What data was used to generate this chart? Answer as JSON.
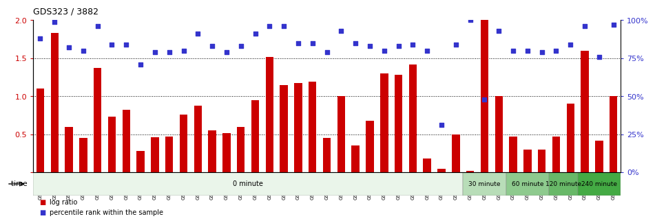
{
  "title": "GDS323 / 3882",
  "categories": [
    "GSM5811",
    "GSM5812",
    "GSM5813",
    "GSM5814",
    "GSM5815",
    "GSM5816",
    "GSM5817",
    "GSM5818",
    "GSM5819",
    "GSM5820",
    "GSM5821",
    "GSM5822",
    "GSM5823",
    "GSM5824",
    "GSM5825",
    "GSM5826",
    "GSM5827",
    "GSM5828",
    "GSM5829",
    "GSM5830",
    "GSM5831",
    "GSM5832",
    "GSM5833",
    "GSM5834",
    "GSM5835",
    "GSM5836",
    "GSM5837",
    "GSM5838",
    "GSM5839",
    "GSM5840",
    "GSM5841",
    "GSM5842",
    "GSM5843",
    "GSM5844",
    "GSM5845",
    "GSM5846",
    "GSM5847",
    "GSM5848",
    "GSM5849",
    "GSM5850",
    "GSM5851"
  ],
  "log_ratio": [
    1.1,
    1.83,
    0.6,
    0.45,
    1.37,
    0.73,
    0.82,
    0.28,
    0.46,
    0.47,
    0.76,
    0.88,
    0.55,
    0.52,
    0.6,
    0.95,
    1.52,
    1.15,
    1.17,
    1.19,
    0.45,
    1.0,
    0.35,
    0.68,
    1.3,
    1.28,
    1.42,
    0.18,
    0.05,
    0.5,
    0.02,
    2.0,
    1.0,
    0.47,
    0.3,
    0.3,
    0.47,
    0.9,
    1.6,
    0.42,
    1.0
  ],
  "percentile": [
    88,
    99,
    82,
    80,
    96,
    84,
    84,
    71,
    79,
    79,
    80,
    91,
    83,
    79,
    83,
    91,
    96,
    96,
    85,
    85,
    79,
    93,
    85,
    83,
    80,
    83,
    84,
    80,
    31,
    84,
    100,
    48,
    93,
    80,
    80,
    79,
    80,
    84,
    96,
    76,
    97
  ],
  "bar_color": "#cc0000",
  "dot_color": "#3333cc",
  "ylim_left": [
    0,
    2.0
  ],
  "ylim_right": [
    0,
    100
  ],
  "yticks_left": [
    0,
    0.5,
    1.0,
    1.5,
    2.0
  ],
  "yticks_right": [
    0,
    25,
    50,
    75,
    100
  ],
  "time_groups": [
    {
      "label": "0 minute",
      "start": 0,
      "end": 30,
      "color": "#eaf5ea"
    },
    {
      "label": "30 minute",
      "start": 30,
      "end": 33,
      "color": "#b8ddb8"
    },
    {
      "label": "60 minute",
      "start": 33,
      "end": 36,
      "color": "#8eca8e"
    },
    {
      "label": "120 minute",
      "start": 36,
      "end": 38,
      "color": "#68b868"
    },
    {
      "label": "240 minute",
      "start": 38,
      "end": 41,
      "color": "#44aa44"
    }
  ],
  "bg_color": "#ffffff",
  "legend_log_ratio": "log ratio",
  "legend_percentile": "percentile rank within the sample",
  "time_label": "time"
}
